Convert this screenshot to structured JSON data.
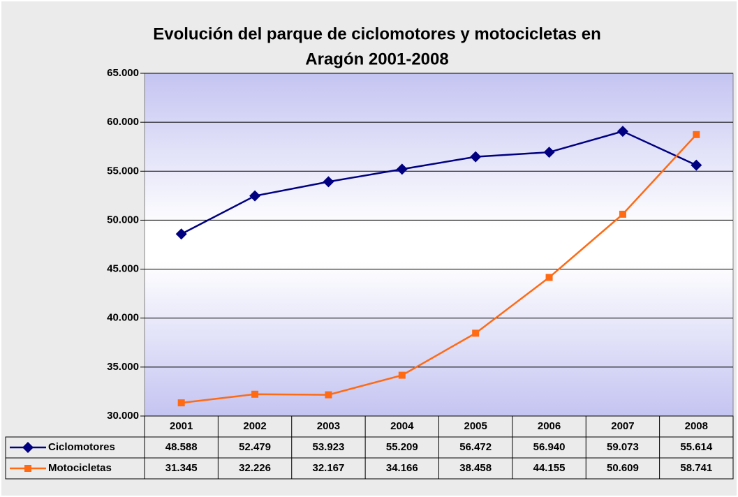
{
  "chart_data": {
    "type": "line",
    "title": [
      "Evolución del parque de ciclomotores y motocicletas en",
      "Aragón 2001-2008"
    ],
    "categories": [
      "2001",
      "2002",
      "2003",
      "2004",
      "2005",
      "2006",
      "2007",
      "2008"
    ],
    "series": [
      {
        "name": "Ciclomotores",
        "color": "#000080",
        "marker": "diamond",
        "values": [
          48588,
          52479,
          53923,
          55209,
          56472,
          56940,
          59073,
          55614
        ],
        "value_labels": [
          "48.588",
          "52.479",
          "53.923",
          "55.209",
          "56.472",
          "56.940",
          "59.073",
          "55.614"
        ]
      },
      {
        "name": "Motocicletas",
        "color": "#ff6a13",
        "marker": "square",
        "values": [
          31345,
          32226,
          32167,
          34166,
          38458,
          44155,
          50609,
          58741
        ],
        "value_labels": [
          "31.345",
          "32.226",
          "32.167",
          "34.166",
          "38.458",
          "44.155",
          "50.609",
          "58.741"
        ]
      }
    ],
    "ylim": [
      30000,
      65000
    ],
    "yticks": [
      {
        "value": 30000,
        "label": "30.000"
      },
      {
        "value": 35000,
        "label": "35.000"
      },
      {
        "value": 40000,
        "label": "40.000"
      },
      {
        "value": 45000,
        "label": "45.000"
      },
      {
        "value": 50000,
        "label": "50.000"
      },
      {
        "value": 55000,
        "label": "55.000"
      },
      {
        "value": 60000,
        "label": "60.000"
      },
      {
        "value": 65000,
        "label": "65.000"
      }
    ],
    "grid": true
  }
}
